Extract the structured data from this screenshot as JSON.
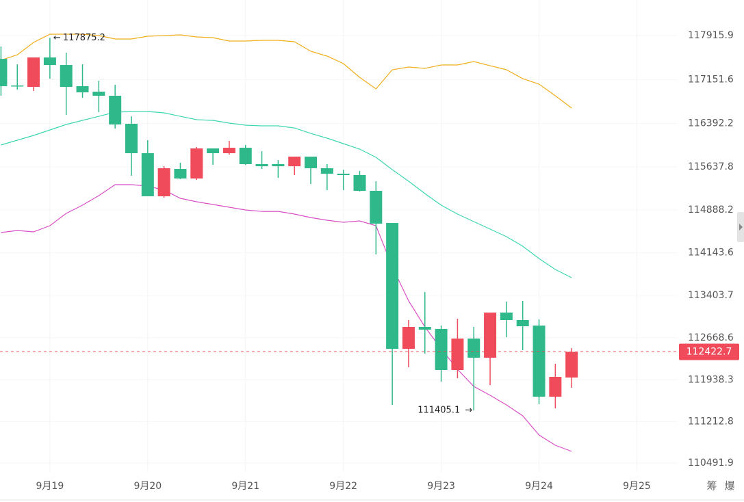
{
  "chart_data": {
    "type": "candlestick",
    "x": [
      0,
      1,
      2,
      3,
      4,
      5,
      6,
      7,
      8,
      9,
      10,
      11,
      12,
      13,
      14,
      15,
      16,
      17,
      18,
      19,
      20,
      21,
      22,
      23,
      24,
      25,
      26,
      27,
      28,
      29,
      30,
      31,
      32,
      33,
      34,
      35
    ],
    "open": [
      117512,
      117049,
      117025,
      117536,
      117405,
      117037,
      116942,
      116871,
      116384,
      115873,
      115125,
      115600,
      115434,
      115956,
      115873,
      115968,
      115683,
      115683,
      115647,
      115814,
      115612,
      115517,
      115493,
      115220,
      114661,
      112476,
      112856,
      112821,
      112108,
      112654,
      112321,
      113105,
      112975,
      112880,
      111644,
      111977
    ],
    "high": [
      117726,
      117417,
      117536,
      117875.2,
      117619,
      117417,
      117132,
      117061,
      116514,
      116099,
      115647,
      115707,
      115980,
      115956,
      116087,
      116016,
      115909,
      115754,
      115814,
      115814,
      115683,
      115588,
      115564,
      115386,
      114661,
      112975,
      113462,
      112880,
      112999,
      112856,
      113105,
      113295,
      113307,
      112987,
      112215,
      112488
    ],
    "low": [
      116871,
      116978,
      116954,
      117168,
      116538,
      116835,
      116586,
      116301,
      115481,
      115125,
      115101,
      115422,
      115410,
      115671,
      115849,
      115671,
      115600,
      115445,
      115493,
      115338,
      115232,
      115232,
      115208,
      114115,
      111502,
      112155,
      112393,
      111906,
      111965,
      111405.1,
      111846,
      112678,
      112452,
      111514,
      111442,
      111799
    ],
    "close": [
      117037,
      117037,
      117536,
      117405,
      117025,
      116930,
      116871,
      116372,
      115873,
      115125,
      115612,
      115434,
      115956,
      115873,
      115968,
      115683,
      115647,
      115647,
      115814,
      115612,
      115517,
      115493,
      115220,
      114650,
      112476,
      112856,
      112809,
      112108,
      112654,
      112321,
      113105,
      112975,
      112868,
      111644,
      111989,
      112422.7
    ],
    "up_color": "#ef4b5b",
    "down_color": "#2fb98a",
    "bands": [
      {
        "color": "#f2ae1c",
        "values": [
          117488,
          117583,
          117797,
          117940,
          117940,
          117940,
          117916,
          117857,
          117857,
          117904,
          117916,
          117928,
          117892,
          117880,
          117821,
          117821,
          117833,
          117833,
          117809,
          117643,
          117560,
          117429,
          117191,
          116990,
          117322,
          117370,
          117346,
          117405,
          117405,
          117465,
          117393,
          117322,
          117168,
          117073,
          116871,
          116657
        ]
      },
      {
        "color": "#3dd6b0",
        "values": [
          116016,
          116099,
          116182,
          116277,
          116372,
          116443,
          116514,
          116586,
          116598,
          116598,
          116574,
          116514,
          116455,
          116443,
          116396,
          116360,
          116348,
          116348,
          116312,
          116217,
          116134,
          116039,
          115944,
          115802,
          115588,
          115386,
          115172,
          114970,
          114816,
          114685,
          114555,
          114424,
          114258,
          114044,
          113854,
          113711
        ]
      },
      {
        "color": "#d94fc6",
        "values": [
          114495,
          114531,
          114507,
          114614,
          114828,
          114970,
          115137,
          115327,
          115327,
          115303,
          115232,
          115089,
          115030,
          114982,
          114935,
          114887,
          114863,
          114863,
          114816,
          114756,
          114709,
          114673,
          114697,
          114614,
          113901,
          113307,
          112856,
          112476,
          112120,
          111823,
          111668,
          111502,
          111312,
          110979,
          110801,
          110694
        ]
      }
    ],
    "annotations": [
      {
        "x": 3,
        "y": 117875.2,
        "side": "right"
      },
      {
        "x": 29,
        "y": 111405.1,
        "side": "left"
      }
    ],
    "last_price": 112422.7,
    "last_price_color": "#ef4b5b",
    "xlim": [
      -0.06,
      41.5
    ],
    "xticks": [
      {
        "value": 3,
        "label": "9月19"
      },
      {
        "value": 9,
        "label": "9月20"
      },
      {
        "value": 15,
        "label": "9月21"
      },
      {
        "value": 21,
        "label": "9月22"
      },
      {
        "value": 27,
        "label": "9月23"
      },
      {
        "value": 33,
        "label": "9月24"
      },
      {
        "value": 39,
        "label": "9月25"
      }
    ],
    "ylim": [
      110338,
      118534
    ],
    "yticks": [
      117915.9,
      117151.6,
      116392.2,
      115637.8,
      114888.2,
      114143.6,
      113403.7,
      112668.6,
      111938.3,
      111212.8,
      110491.9
    ],
    "grid": true,
    "footer_buttons": [
      "筹",
      "爆"
    ]
  }
}
